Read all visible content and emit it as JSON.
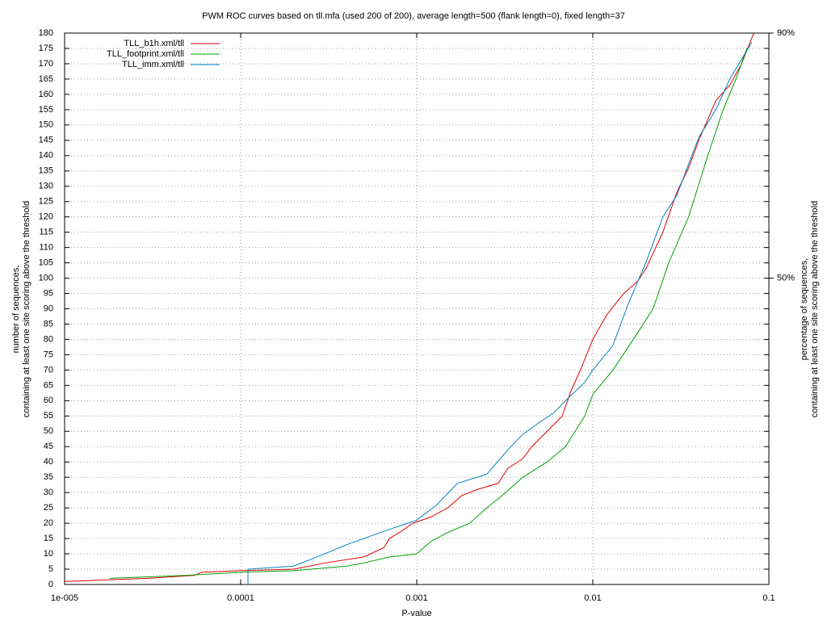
{
  "chart_data": {
    "type": "line",
    "title": "PWM ROC curves based on tll.mfa (used 200 of 200), average length=500 (flank length=0), fixed length=37",
    "xlabel": "P-value",
    "ylabel": [
      "number of sequences,",
      "containing at least one site scoring above the threshold"
    ],
    "y2label": [
      "percentage of sequences,",
      "containing at least one site scoring above the threshold"
    ],
    "xscale": "log",
    "xlim": [
      1e-05,
      0.1
    ],
    "xticks": [
      {
        "value": 1e-05,
        "label": "1e-005"
      },
      0.0001,
      0.001,
      0.01,
      0.1
    ],
    "ylim": [
      0,
      180
    ],
    "yticks": [
      0,
      5,
      10,
      15,
      20,
      25,
      30,
      35,
      40,
      45,
      50,
      55,
      60,
      65,
      70,
      75,
      80,
      85,
      90,
      95,
      100,
      105,
      110,
      115,
      120,
      125,
      130,
      135,
      140,
      145,
      150,
      155,
      160,
      165,
      170,
      175,
      180
    ],
    "y2lim": [
      0,
      90
    ],
    "y2ticks": [
      {
        "value": 50,
        "label": "50%"
      },
      {
        "value": 90,
        "label": "90%"
      }
    ],
    "grid": true,
    "legend": "top-left",
    "series": [
      {
        "name": "TLL_b1h.xml/tll",
        "color": "#e00000",
        "x": [
          1e-05,
          3e-05,
          5.5e-05,
          6e-05,
          0.0001,
          0.0002,
          0.0003,
          0.0005,
          0.00065,
          0.0007,
          0.0008,
          0.00095,
          0.0012,
          0.0015,
          0.0018,
          0.0022,
          0.0029,
          0.0033,
          0.004,
          0.0045,
          0.0055,
          0.0067,
          0.0075,
          0.0085,
          0.01,
          0.012,
          0.015,
          0.018,
          0.02,
          0.025,
          0.03,
          0.035,
          0.04,
          0.05,
          0.06,
          0.07,
          0.082
        ],
        "values": [
          1,
          2,
          3,
          4,
          4.5,
          5,
          7,
          9,
          12,
          15,
          17,
          20,
          22,
          25,
          29,
          31,
          33,
          38,
          41,
          45,
          50,
          55,
          63,
          70,
          80,
          88,
          95,
          99,
          103,
          115,
          128,
          136,
          145,
          158,
          163,
          170,
          180
        ]
      },
      {
        "name": "TLL_footprint.xml/tll",
        "color": "#00a000",
        "x": [
          1.8e-05,
          5e-05,
          0.0001,
          0.0002,
          0.0004,
          0.0005,
          0.0007,
          0.001,
          0.0012,
          0.0015,
          0.002,
          0.0025,
          0.0032,
          0.004,
          0.0055,
          0.007,
          0.009,
          0.01,
          0.013,
          0.017,
          0.022,
          0.027,
          0.035,
          0.045,
          0.055,
          0.065,
          0.075
        ],
        "values": [
          2,
          3,
          4,
          4.5,
          6,
          7,
          9,
          10,
          14,
          17,
          20,
          25,
          30,
          35,
          40,
          45,
          55,
          62,
          70,
          80,
          90,
          105,
          120,
          140,
          155,
          165,
          175
        ]
      },
      {
        "name": "TLL_imm.xml/tll",
        "color": "#0080c0",
        "x": [
          0.00011,
          0.00011,
          0.0002,
          0.0003,
          0.0004,
          0.0005,
          0.0007,
          0.001,
          0.0013,
          0.0017,
          0.0025,
          0.0033,
          0.004,
          0.005,
          0.006,
          0.007,
          0.009,
          0.01,
          0.013,
          0.016,
          0.02,
          0.025,
          0.03,
          0.04,
          0.05,
          0.06,
          0.08
        ],
        "values": [
          0,
          5,
          6,
          10,
          13,
          15,
          18,
          21,
          26,
          33,
          36,
          44,
          49,
          53,
          56,
          60,
          66,
          70,
          78,
          92,
          105,
          120,
          127,
          146,
          155,
          165,
          177
        ]
      }
    ]
  }
}
